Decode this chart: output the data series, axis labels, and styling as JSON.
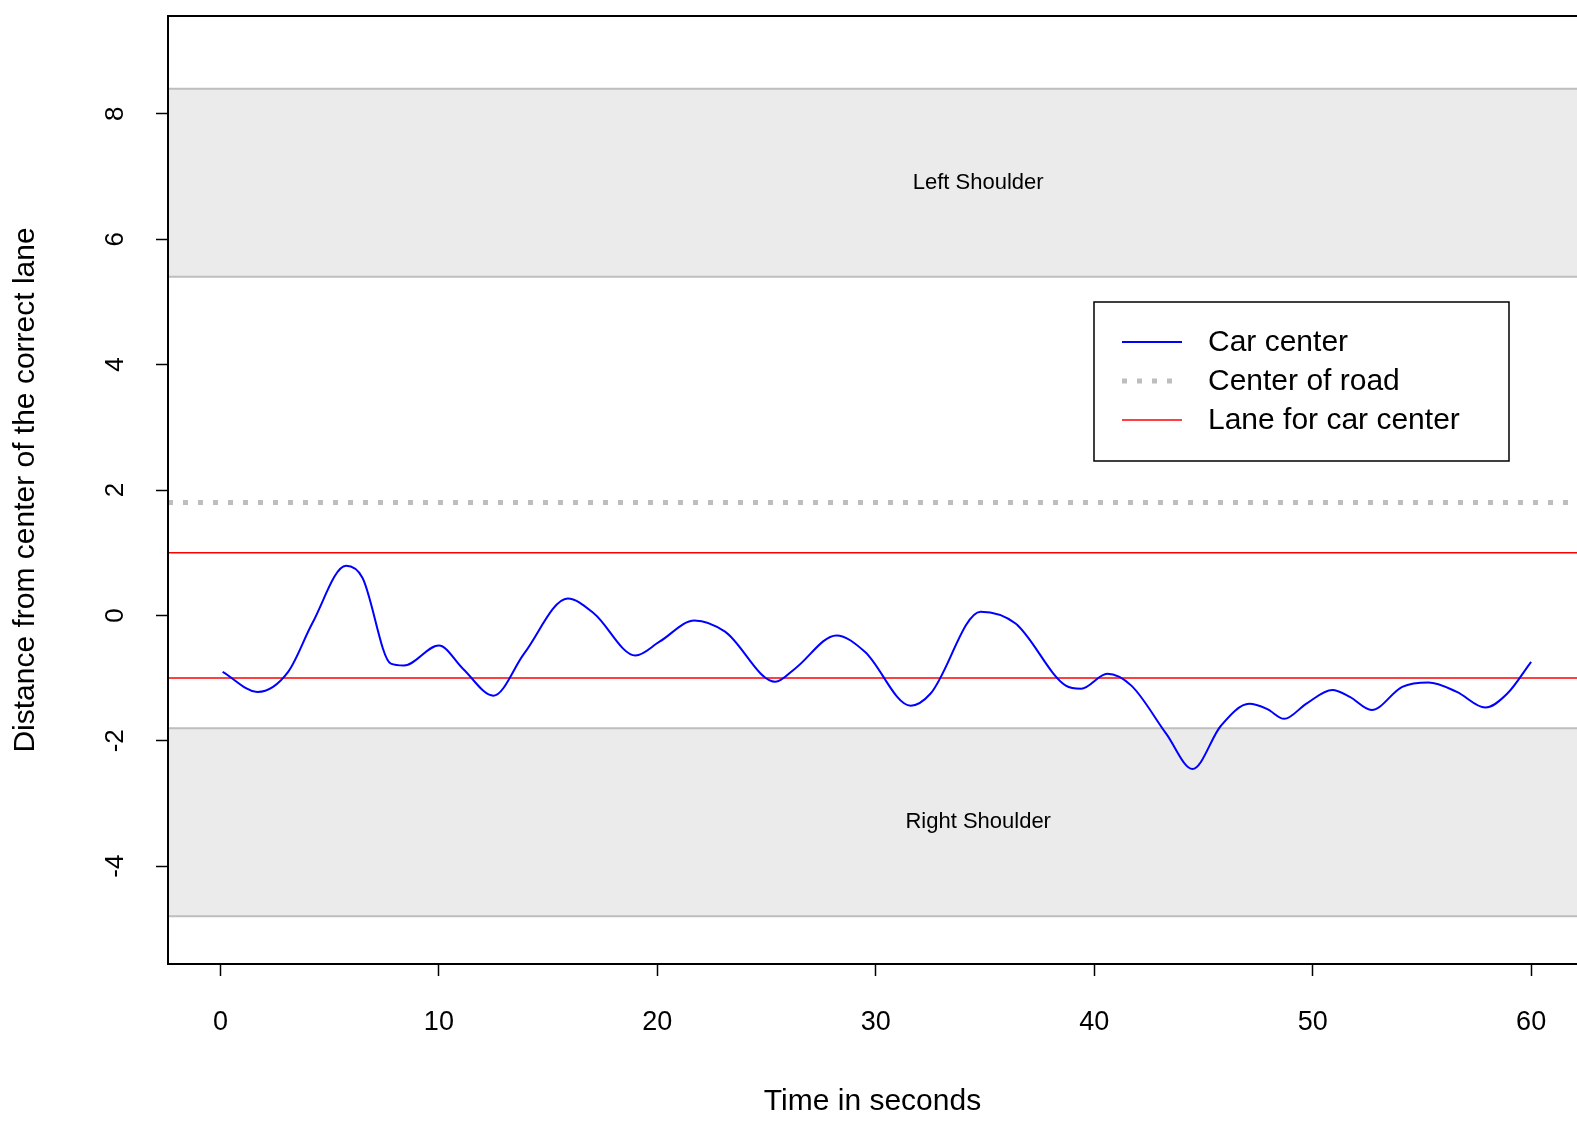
{
  "chart_data": {
    "type": "line",
    "xlabel": "Time in seconds",
    "ylabel": "Distance from center of the correct lane",
    "xlim": [
      -2.4,
      62.1
    ],
    "ylim": [
      -5.56,
      9.56
    ],
    "xticks": [
      0,
      10,
      20,
      30,
      40,
      50,
      60
    ],
    "yticks": [
      -4,
      -2,
      0,
      2,
      4,
      6,
      8
    ],
    "grid": false,
    "legend": "top right",
    "marker": "none",
    "bands": [
      {
        "axis": "y",
        "from": 5.4,
        "to": 8.4,
        "label": "Left Shoulder",
        "color": "#bebebe"
      },
      {
        "axis": "y",
        "from": -4.8,
        "to": -1.8,
        "label": "Right Shoulder",
        "color": "#bebebe"
      }
    ],
    "series": [
      {
        "name": "Car center",
        "color": "#0000ff",
        "line_style": "solid",
        "x": [
          0.1,
          1.7,
          3.1,
          4.2,
          5.75,
          6.5,
          7.8,
          8.4,
          10,
          11.1,
          12.5,
          13.9,
          15.9,
          17.1,
          19.0,
          20.1,
          21.7,
          23.1,
          25.4,
          26.3,
          28.2,
          29.5,
          31.6,
          32.5,
          34.8,
          36.4,
          38.7,
          39.4,
          40.6,
          41.7,
          43.3,
          44.5,
          45.8,
          47.1,
          47.9,
          48.7,
          49.7,
          50.9,
          51.7,
          52.7,
          54.1,
          55.3,
          56.6,
          57.9,
          58.9,
          60
        ],
        "values": [
          -0.9,
          -1.22,
          -0.9,
          -0.13,
          0.79,
          0.6,
          -0.77,
          -0.8,
          -0.48,
          -0.85,
          -1.28,
          -0.61,
          0.27,
          0.03,
          -0.64,
          -0.42,
          -0.08,
          -0.26,
          -1.06,
          -0.85,
          -0.32,
          -0.58,
          -1.44,
          -1.25,
          0.06,
          -0.13,
          -1.12,
          -1.17,
          -0.93,
          -1.12,
          -1.89,
          -2.45,
          -1.76,
          -1.41,
          -1.49,
          -1.65,
          -1.41,
          -1.19,
          -1.3,
          -1.51,
          -1.14,
          -1.07,
          -1.22,
          -1.47,
          -1.25,
          -0.74
        ]
      },
      {
        "name": "Center of road",
        "color": "#bebebe",
        "line_style": "dotted",
        "x": [
          -2.4,
          62.1
        ],
        "values": [
          1.8,
          1.8
        ]
      },
      {
        "name": "Lane for car center",
        "color": "#ff0000",
        "line_style": "solid",
        "x": [
          -2.4,
          62.1
        ],
        "values": [
          1,
          1
        ]
      },
      {
        "color": "#ff0000",
        "line_style": "solid",
        "x": [
          -2.4,
          62.1
        ],
        "values": [
          -1,
          -1
        ]
      }
    ]
  }
}
